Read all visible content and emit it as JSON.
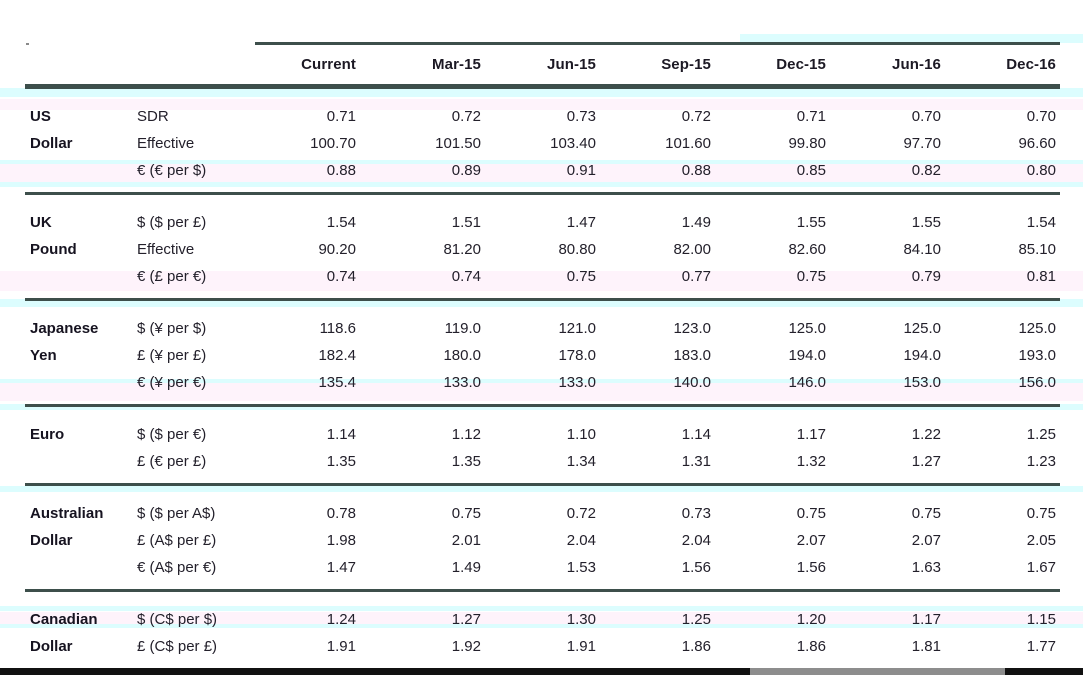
{
  "chart_data": {
    "type": "table",
    "title": "",
    "columns": [
      "Current",
      "Mar-15",
      "Jun-15",
      "Sep-15",
      "Dec-15",
      "Jun-16",
      "Dec-16"
    ],
    "sections": [
      {
        "currency": [
          "US",
          "Dollar"
        ],
        "rows": [
          {
            "label": "SDR",
            "values": [
              "0.71",
              "0.72",
              "0.73",
              "0.72",
              "0.71",
              "0.70",
              "0.70"
            ]
          },
          {
            "label": "Effective",
            "values": [
              "100.70",
              "101.50",
              "103.40",
              "101.60",
              "99.80",
              "97.70",
              "96.60"
            ]
          },
          {
            "label": "€ (€ per $)",
            "values": [
              "0.88",
              "0.89",
              "0.91",
              "0.88",
              "0.85",
              "0.82",
              "0.80"
            ]
          }
        ]
      },
      {
        "currency": [
          "UK",
          "Pound"
        ],
        "rows": [
          {
            "label": "$ ($ per £)",
            "values": [
              "1.54",
              "1.51",
              "1.47",
              "1.49",
              "1.55",
              "1.55",
              "1.54"
            ]
          },
          {
            "label": "Effective",
            "values": [
              "90.20",
              "81.20",
              "80.80",
              "82.00",
              "82.60",
              "84.10",
              "85.10"
            ]
          },
          {
            "label": "€ (£ per €)",
            "values": [
              "0.74",
              "0.74",
              "0.75",
              "0.77",
              "0.75",
              "0.79",
              "0.81"
            ]
          }
        ]
      },
      {
        "currency": [
          "Japanese",
          "Yen"
        ],
        "rows": [
          {
            "label": "$ (¥ per $)",
            "values": [
              "118.6",
              "119.0",
              "121.0",
              "123.0",
              "125.0",
              "125.0",
              "125.0"
            ]
          },
          {
            "label": "£ (¥ per £)",
            "values": [
              "182.4",
              "180.0",
              "178.0",
              "183.0",
              "194.0",
              "194.0",
              "193.0"
            ]
          },
          {
            "label": "€ (¥ per €)",
            "values": [
              "135.4",
              "133.0",
              "133.0",
              "140.0",
              "146.0",
              "153.0",
              "156.0"
            ]
          }
        ]
      },
      {
        "currency": [
          "Euro"
        ],
        "rows": [
          {
            "label": "$ ($ per €)",
            "values": [
              "1.14",
              "1.12",
              "1.10",
              "1.14",
              "1.17",
              "1.22",
              "1.25"
            ]
          },
          {
            "label": "£ (€ per £)",
            "values": [
              "1.35",
              "1.35",
              "1.34",
              "1.31",
              "1.32",
              "1.27",
              "1.23"
            ]
          }
        ]
      },
      {
        "currency": [
          "Australian",
          "Dollar"
        ],
        "rows": [
          {
            "label": "$ ($ per A$)",
            "values": [
              "0.78",
              "0.75",
              "0.72",
              "0.73",
              "0.75",
              "0.75",
              "0.75"
            ]
          },
          {
            "label": "£ (A$ per £)",
            "values": [
              "1.98",
              "2.01",
              "2.04",
              "2.04",
              "2.07",
              "2.07",
              "2.05"
            ]
          },
          {
            "label": "€ (A$ per €)",
            "values": [
              "1.47",
              "1.49",
              "1.53",
              "1.56",
              "1.56",
              "1.63",
              "1.67"
            ]
          }
        ]
      },
      {
        "currency": [
          "Canadian",
          "Dollar"
        ],
        "rows": [
          {
            "label": "$ (C$ per $)",
            "values": [
              "1.24",
              "1.27",
              "1.30",
              "1.25",
              "1.20",
              "1.17",
              "1.15"
            ]
          },
          {
            "label": "£ (C$ per £)",
            "values": [
              "1.91",
              "1.92",
              "1.91",
              "1.86",
              "1.86",
              "1.81",
              "1.77"
            ]
          }
        ]
      }
    ],
    "layout": {
      "grid": "off",
      "header_rule": "thick",
      "section_dividers": true
    }
  },
  "colors": {
    "rule": "#3d4f4b",
    "header_text": "#1c1924",
    "body_text": "#23202b",
    "bottom_bar_dark": "#111111",
    "bottom_bar_gray": "#8d8d8d"
  }
}
